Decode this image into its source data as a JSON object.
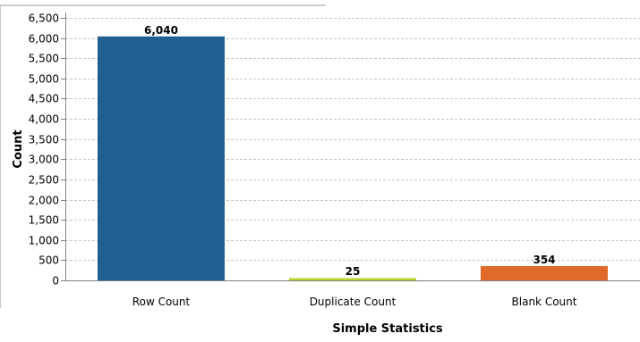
{
  "chart_data": {
    "type": "bar",
    "categories": [
      "Row Count",
      "Duplicate Count",
      "Blank Count"
    ],
    "values": [
      6040,
      25,
      354
    ],
    "value_labels": [
      "6,040",
      "25",
      "354"
    ],
    "bar_colors": [
      "#1f5f91",
      "#b6d62e",
      "#e06a2c"
    ],
    "title": "",
    "xlabel": "Simple Statistics",
    "ylabel": "Count",
    "ylim": [
      0,
      6500
    ],
    "yticks": [
      "0",
      "500",
      "1,000",
      "1,500",
      "2,000",
      "2,500",
      "3,000",
      "3,500",
      "4,000",
      "4,500",
      "5,000",
      "5,500",
      "6,000",
      "6,500"
    ],
    "grid": true,
    "grid_style": "dashed",
    "legend": "none"
  }
}
